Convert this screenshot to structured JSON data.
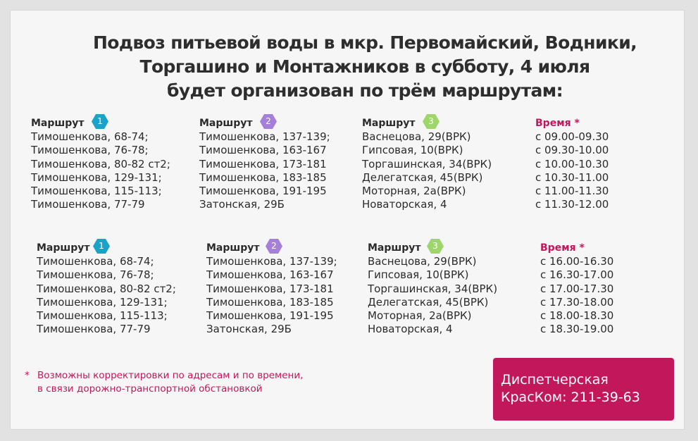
{
  "title": {
    "line1": "Подвоз питьевой воды в мкр. Первомайский, Водники,",
    "line2": "Торгашино и Монтажников в субботу, 4 июля",
    "line3": "будет организован по трём маршрутам:"
  },
  "colors": {
    "route1": "#1aa3c9",
    "route2": "#a67fd9",
    "route3": "#9ed66b",
    "accent": "#c2185b"
  },
  "block1": {
    "route1": {
      "label": "Маршрут",
      "number": "1",
      "addresses": [
        "Тимошенкова, 68-74;",
        "Тимошенкова, 76-78;",
        "Тимошенкова, 80-82 ст2;",
        "Тимошенкова, 129-131;",
        "Тимошенкова, 115-113;",
        "Тимошенкова, 77-79"
      ]
    },
    "route2": {
      "label": "Маршрут",
      "number": "2",
      "addresses": [
        "Тимошенкова, 137-139;",
        "Тимошенкова, 163-167",
        "Тимошенкова, 173-181",
        "Тимошенкова, 183-185",
        "Тимошенкова, 191-195",
        "Затонская, 29Б"
      ]
    },
    "route3": {
      "label": "Маршрут",
      "number": "3",
      "addresses": [
        "Васнецова, 29(ВРК)",
        "Гипсовая, 10(ВРК)",
        "Торгашинская, 34(ВРК)",
        "Делегатская, 45(ВРК)",
        "Моторная, 2а(ВРК)",
        "Новаторская, 4"
      ]
    },
    "time": {
      "label": "Время *",
      "slots": [
        "с 09.00-09.30",
        "с 09.30-10.00",
        "с 10.00-10.30",
        "с 10.30-11.00",
        "с 11.00-11.30",
        "с 11.30-12.00"
      ]
    }
  },
  "block2": {
    "route1": {
      "label": "Маршрут",
      "number": "1",
      "addresses": [
        "Тимошенкова, 68-74;",
        "Тимошенкова, 76-78;",
        "Тимошенкова, 80-82 ст2;",
        "Тимошенкова, 129-131;",
        "Тимошенкова, 115-113;",
        "Тимошенкова, 77-79"
      ]
    },
    "route2": {
      "label": "Маршрут",
      "number": "2",
      "addresses": [
        "Тимошенкова, 137-139;",
        "Тимошенкова, 163-167",
        "Тимошенкова, 173-181",
        "Тимошенкова, 183-185",
        "Тимошенкова, 191-195",
        "Затонская, 29Б"
      ]
    },
    "route3": {
      "label": "Маршрут",
      "number": "3",
      "addresses": [
        "Васнецова, 29(ВРК)",
        "Гипсовая, 10(ВРК)",
        "Торгашинская, 34(ВРК)",
        "Делегатская, 45(ВРК)",
        "Моторная, 2а(ВРК)",
        "Новаторская, 4"
      ]
    },
    "time": {
      "label": "Время *",
      "slots": [
        "с 16.00-16.30",
        "с 16.30-17.00",
        "с 17.00-17.30",
        "с 17.30-18.00",
        "с 18.00-18.30",
        "с 18.30-19.00"
      ]
    }
  },
  "note": {
    "star": "*",
    "line1": "Возможны корректировки по адресам и по времени,",
    "line2": "в связи дорожно-транспортной обстановкой"
  },
  "dispatch": {
    "line1": "Диспетчерская",
    "line2": "КрасКом:  211-39-63"
  }
}
